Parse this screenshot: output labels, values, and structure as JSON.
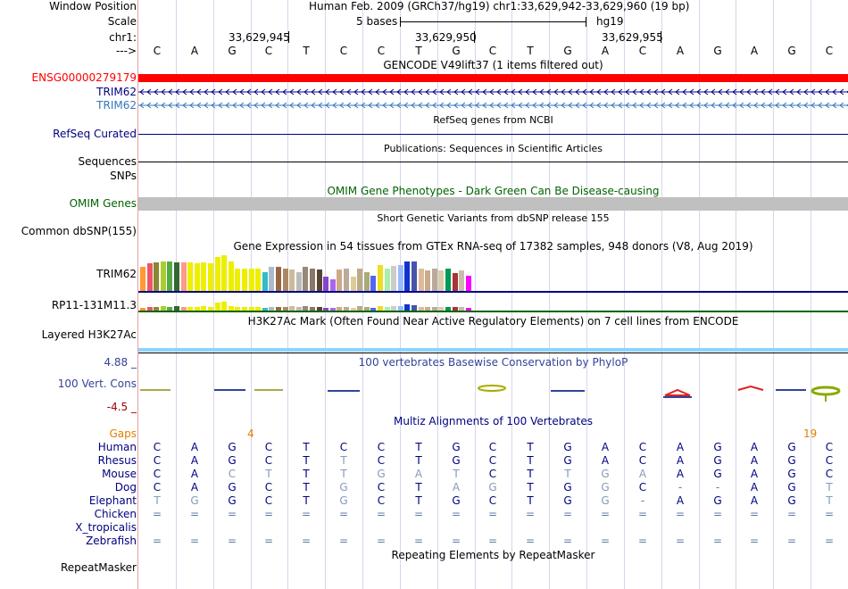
{
  "colors": {
    "label_blue": "#000080",
    "trim_blue": "#3377bb",
    "gencode_red": "#ff0000",
    "omim_green": "#006400",
    "gaps_orange": "#e08000",
    "grid": "#d6d6ee",
    "phylo_blue": "#334499",
    "h3k_blue": "#8cd3ff"
  },
  "header": {
    "window_position_label": "Window Position",
    "window_position_value": "Human Feb. 2009 (GRCh37/hg19)   chr1:33,629,942-33,629,960 (19 bp)",
    "scale_label": "Scale",
    "scale_value": "5 bases",
    "scale_assembly": "hg19",
    "chrom_label": "chr1:",
    "coords": [
      "33,629,945",
      "33,629,950",
      "33,629,955"
    ],
    "arrow_label": "--->",
    "bases": [
      "C",
      "A",
      "G",
      "C",
      "T",
      "C",
      "C",
      "T",
      "G",
      "C",
      "T",
      "G",
      "A",
      "C",
      "A",
      "G",
      "A",
      "G",
      "C"
    ]
  },
  "tracks": {
    "gencode_title": "GENCODE V49lift37 (1 items filtered out)",
    "gencode_items": [
      "ENSG00000279179",
      "TRIM62",
      "TRIM62"
    ],
    "refseq_title": "RefSeq genes from NCBI",
    "refseq_label": "RefSeq Curated",
    "pubs_title": "Publications: Sequences in Scientific Articles",
    "sequences_label": "Sequences",
    "snps_label": "SNPs",
    "omim_title": "OMIM Gene Phenotypes - Dark Green Can Be Disease-causing",
    "omim_label": "OMIM Genes",
    "dbsnp_title": "Short Genetic Variants from dbSNP release 155",
    "dbsnp_label": "Common dbSNP(155)",
    "gtex_title": "Gene Expression in 54 tissues from GTEx RNA-seq of 17382 samples, 948 donors (V8, Aug 2019)",
    "gtex_gene1": "TRIM62",
    "gtex_gene2": "RP11-131M11.3",
    "h3k_title": "H3K27Ac Mark (Often Found Near Active Regulatory Elements) on 7 cell lines from ENCODE",
    "h3k_label": "Layered H3K27Ac",
    "cons_max": "4.88 _",
    "cons_label": "100 Vert. Cons",
    "cons_min": "-4.5 _",
    "phylop_title": "100 vertebrates Basewise Conservation by PhyloP",
    "multiz_title": "Multiz Alignments of 100 Vertebrates",
    "gaps_label": "Gaps",
    "gap_count_1": "4",
    "gap_count_2": "19",
    "repeat_title": "Repeating Elements by RepeatMasker",
    "repeat_label": "RepeatMasker"
  },
  "gtex_bars": {
    "trim62": [
      {
        "v": 0.67,
        "c": "#ff9933"
      },
      {
        "v": 0.77,
        "c": "#ee5566"
      },
      {
        "v": 0.8,
        "c": "#888833"
      },
      {
        "v": 0.83,
        "c": "#aacc33"
      },
      {
        "v": 0.83,
        "c": "#55aa44"
      },
      {
        "v": 0.8,
        "c": "#336633"
      },
      {
        "v": 0.8,
        "c": "#ff9988"
      },
      {
        "v": 0.8,
        "c": "#eeee00"
      },
      {
        "v": 0.77,
        "c": "#eeee00"
      },
      {
        "v": 0.8,
        "c": "#eeee00"
      },
      {
        "v": 0.77,
        "c": "#eeee00"
      },
      {
        "v": 0.95,
        "c": "#eeee00"
      },
      {
        "v": 1.0,
        "c": "#eeee00"
      },
      {
        "v": 0.83,
        "c": "#eeee00"
      },
      {
        "v": 0.63,
        "c": "#eeee00"
      },
      {
        "v": 0.63,
        "c": "#eeee00"
      },
      {
        "v": 0.63,
        "c": "#eeee00"
      },
      {
        "v": 0.63,
        "c": "#eeee00"
      },
      {
        "v": 0.53,
        "c": "#33bbcc"
      },
      {
        "v": 0.67,
        "c": "#aabbcc"
      },
      {
        "v": 0.67,
        "c": "#996644"
      },
      {
        "v": 0.63,
        "c": "#aa8866"
      },
      {
        "v": 0.6,
        "c": "#ccbb99"
      },
      {
        "v": 0.53,
        "c": "#bbbbbb"
      },
      {
        "v": 0.67,
        "c": "#998877"
      },
      {
        "v": 0.63,
        "c": "#887766"
      },
      {
        "v": 0.6,
        "c": "#554433"
      },
      {
        "v": 0.4,
        "c": "#8844cc"
      },
      {
        "v": 0.33,
        "c": "#aa66ee"
      },
      {
        "v": 0.6,
        "c": "#ccaa88"
      },
      {
        "v": 0.63,
        "c": "#bbaa99"
      },
      {
        "v": 0.4,
        "c": "#ddcc99"
      },
      {
        "v": 0.63,
        "c": "#bbaa88"
      },
      {
        "v": 0.53,
        "c": "#aaaa77"
      },
      {
        "v": 0.43,
        "c": "#5566ee"
      },
      {
        "v": 0.73,
        "c": "#eedd22"
      },
      {
        "v": 0.63,
        "c": "#aaeeaa"
      },
      {
        "v": 0.7,
        "c": "#cccccc"
      },
      {
        "v": 0.73,
        "c": "#99bbff"
      },
      {
        "v": 0.83,
        "c": "#1133cc"
      },
      {
        "v": 0.83,
        "c": "#4455aa"
      },
      {
        "v": 0.63,
        "c": "#ddbb99"
      },
      {
        "v": 0.57,
        "c": "#ccaa88"
      },
      {
        "v": 0.63,
        "c": "#bbaa99"
      },
      {
        "v": 0.57,
        "c": "#ddccaa"
      },
      {
        "v": 0.63,
        "c": "#009955"
      },
      {
        "v": 0.5,
        "c": "#aa3333"
      },
      {
        "v": 0.57,
        "c": "#ccbbaa"
      },
      {
        "v": 0.43,
        "c": "#ff00ff"
      }
    ],
    "rp11": [
      {
        "v": 0.3,
        "c": "#ff9933"
      },
      {
        "v": 0.4,
        "c": "#ee5566"
      },
      {
        "v": 0.4,
        "c": "#888833"
      },
      {
        "v": 0.5,
        "c": "#aacc33"
      },
      {
        "v": 0.4,
        "c": "#55aa44"
      },
      {
        "v": 0.5,
        "c": "#336633"
      },
      {
        "v": 0.4,
        "c": "#ff9988"
      },
      {
        "v": 0.4,
        "c": "#eeee00"
      },
      {
        "v": 0.4,
        "c": "#eeee00"
      },
      {
        "v": 0.5,
        "c": "#eeee00"
      },
      {
        "v": 0.4,
        "c": "#eeee00"
      },
      {
        "v": 0.9,
        "c": "#eeee00"
      },
      {
        "v": 1.0,
        "c": "#eeee00"
      },
      {
        "v": 0.5,
        "c": "#eeee00"
      },
      {
        "v": 0.4,
        "c": "#eeee00"
      },
      {
        "v": 0.4,
        "c": "#eeee00"
      },
      {
        "v": 0.4,
        "c": "#eeee00"
      },
      {
        "v": 0.4,
        "c": "#eeee00"
      },
      {
        "v": 0.3,
        "c": "#33bbcc"
      },
      {
        "v": 0.4,
        "c": "#aabbcc"
      },
      {
        "v": 0.4,
        "c": "#996644"
      },
      {
        "v": 0.4,
        "c": "#aa8866"
      },
      {
        "v": 0.5,
        "c": "#ccbb99"
      },
      {
        "v": 0.4,
        "c": "#bbbbbb"
      },
      {
        "v": 0.5,
        "c": "#998877"
      },
      {
        "v": 0.4,
        "c": "#887766"
      },
      {
        "v": 0.4,
        "c": "#554433"
      },
      {
        "v": 0.3,
        "c": "#8844cc"
      },
      {
        "v": 0.3,
        "c": "#aa66ee"
      },
      {
        "v": 0.4,
        "c": "#ccaa88"
      },
      {
        "v": 0.4,
        "c": "#bbaa99"
      },
      {
        "v": 0.3,
        "c": "#ddcc99"
      },
      {
        "v": 0.5,
        "c": "#bbaa88"
      },
      {
        "v": 0.4,
        "c": "#aaaa77"
      },
      {
        "v": 0.3,
        "c": "#5566ee"
      },
      {
        "v": 0.5,
        "c": "#eedd22"
      },
      {
        "v": 0.4,
        "c": "#aaeeaa"
      },
      {
        "v": 0.5,
        "c": "#cccccc"
      },
      {
        "v": 0.5,
        "c": "#99bbff"
      },
      {
        "v": 0.7,
        "c": "#1133cc"
      },
      {
        "v": 0.6,
        "c": "#4455aa"
      },
      {
        "v": 0.4,
        "c": "#ddbb99"
      },
      {
        "v": 0.4,
        "c": "#ccaa88"
      },
      {
        "v": 0.4,
        "c": "#bbaa99"
      },
      {
        "v": 0.4,
        "c": "#ddccaa"
      },
      {
        "v": 0.4,
        "c": "#009955"
      },
      {
        "v": 0.4,
        "c": "#aa3333"
      },
      {
        "v": 0.4,
        "c": "#ccbbaa"
      },
      {
        "v": 0.3,
        "c": "#ff00ff"
      }
    ]
  },
  "alignment": {
    "species": [
      {
        "name": "Human",
        "seq": [
          "C",
          "A",
          "G",
          "C",
          "T",
          "C",
          "C",
          "T",
          "G",
          "C",
          "T",
          "G",
          "A",
          "C",
          "A",
          "G",
          "A",
          "G",
          "C"
        ]
      },
      {
        "name": "Rhesus",
        "seq": [
          "C",
          "A",
          "G",
          "C",
          "T",
          "T",
          "C",
          "T",
          "G",
          "C",
          "T",
          "G",
          "A",
          "C",
          "A",
          "G",
          "A",
          "G",
          "C"
        ]
      },
      {
        "name": "Mouse",
        "seq": [
          "C",
          "A",
          "C",
          "T",
          "T",
          "T",
          "G",
          "A",
          "T",
          "C",
          "T",
          "T",
          "G",
          "A",
          "A",
          "G",
          "A",
          "G",
          "C"
        ]
      },
      {
        "name": "Dog",
        "seq": [
          "C",
          "A",
          "G",
          "C",
          "T",
          "G",
          "C",
          "T",
          "A",
          "G",
          "T",
          "G",
          "G",
          "C",
          "-",
          "-",
          "A",
          "G",
          "T"
        ]
      },
      {
        "name": "Elephant",
        "seq": [
          "T",
          "G",
          "G",
          "C",
          "T",
          "G",
          "C",
          "T",
          "G",
          "C",
          "T",
          "G",
          "G",
          "-",
          "A",
          "G",
          "A",
          "G",
          "T"
        ]
      },
      {
        "name": "Chicken",
        "seq": [
          "=",
          "=",
          "=",
          "=",
          "=",
          "=",
          "=",
          "=",
          "=",
          "=",
          "=",
          "=",
          "=",
          "=",
          "=",
          "=",
          "=",
          "=",
          "="
        ]
      },
      {
        "name": "X_tropicalis",
        "seq": [
          "",
          "",
          "",
          "",
          "",
          "",
          "",
          "",
          "",
          "",
          "",
          "",
          "",
          "",
          "",
          "",
          "",
          "",
          ""
        ]
      },
      {
        "name": "Zebrafish",
        "seq": [
          "=",
          "=",
          "=",
          "=",
          "=",
          "=",
          "=",
          "=",
          "=",
          "=",
          "=",
          "=",
          "=",
          "=",
          "=",
          "=",
          "=",
          "=",
          "="
        ]
      }
    ]
  }
}
